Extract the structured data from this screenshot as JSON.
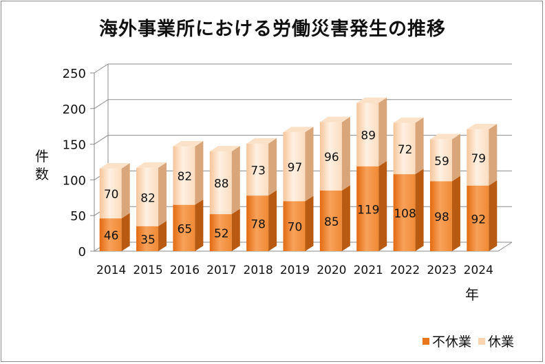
{
  "chart_data": {
    "type": "bar",
    "stacked": true,
    "three_d": true,
    "title": "海外事業所における労働災害発生の推移",
    "ylabel": "件数",
    "xlabel": "年",
    "ylim": [
      0,
      250
    ],
    "yticks": [
      0,
      50,
      100,
      150,
      200,
      250
    ],
    "grid": true,
    "legend_position": "bottom-right",
    "categories": [
      "2014",
      "2015",
      "2016",
      "2017",
      "2018",
      "2019",
      "2020",
      "2021",
      "2022",
      "2023",
      "2024"
    ],
    "series": [
      {
        "name": "不休業",
        "values": [
          46,
          35,
          65,
          52,
          78,
          70,
          85,
          119,
          108,
          98,
          92
        ],
        "color": "#e8761e"
      },
      {
        "name": "休業",
        "values": [
          70,
          82,
          82,
          88,
          73,
          97,
          96,
          89,
          72,
          59,
          79
        ],
        "color": "#fcd5b0"
      }
    ]
  }
}
